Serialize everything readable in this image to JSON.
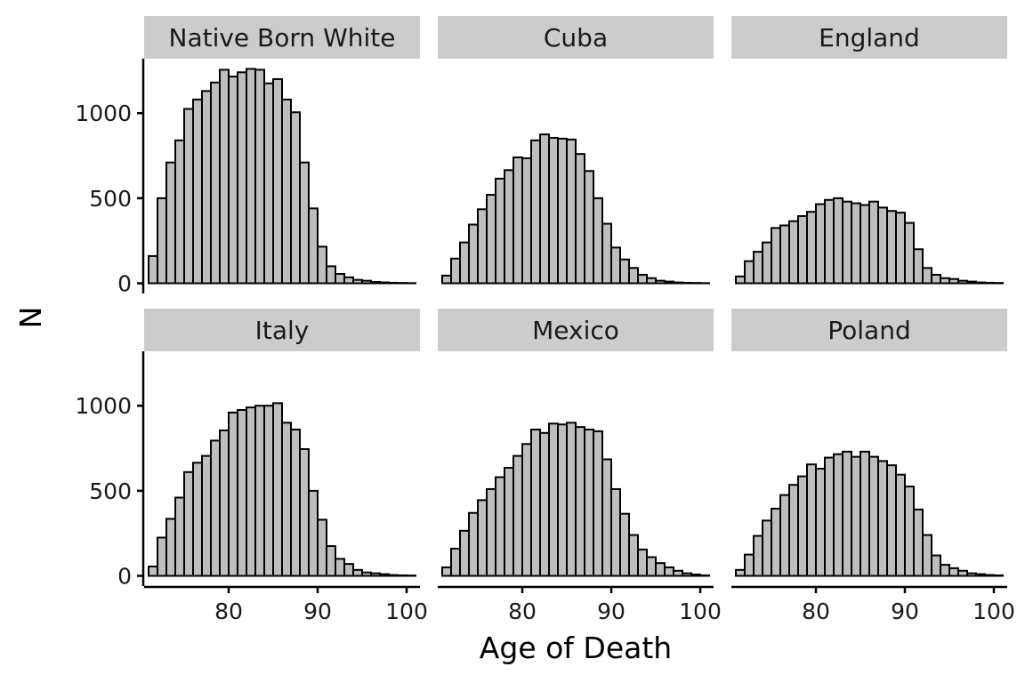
{
  "chart_data": {
    "type": "bar",
    "layout": "facet_wrap 2 rows x 3 columns, shared axes",
    "xlabel": "Age of Death",
    "ylabel": "N",
    "xlim": [
      70.5,
      101.5
    ],
    "ylim": [
      -60,
      1320
    ],
    "x_ticks": [
      80,
      90,
      100
    ],
    "y_ticks": [
      0,
      500,
      1000
    ],
    "bin_start": 71,
    "bin_width": 1,
    "bar_color": "#bebebe",
    "outline_color": "#000000",
    "strip_color": "#cccccc",
    "grid": false,
    "legend": "none",
    "panels": [
      {
        "name": "Native Born White",
        "values": [
          160,
          500,
          710,
          840,
          1025,
          1080,
          1130,
          1180,
          1255,
          1215,
          1240,
          1260,
          1255,
          1175,
          1200,
          1080,
          1005,
          710,
          440,
          215,
          100,
          55,
          35,
          20,
          15,
          8,
          5,
          3,
          2,
          1
        ]
      },
      {
        "name": "Cuba",
        "values": [
          45,
          145,
          240,
          345,
          435,
          520,
          615,
          665,
          740,
          735,
          840,
          875,
          855,
          850,
          845,
          760,
          660,
          500,
          350,
          210,
          140,
          90,
          50,
          30,
          15,
          10,
          5,
          3,
          2,
          1
        ]
      },
      {
        "name": "England",
        "values": [
          40,
          130,
          185,
          240,
          325,
          340,
          365,
          395,
          420,
          465,
          490,
          500,
          480,
          470,
          460,
          480,
          445,
          425,
          415,
          355,
          200,
          90,
          50,
          30,
          25,
          15,
          10,
          5,
          3,
          2
        ]
      },
      {
        "name": "Italy",
        "values": [
          55,
          225,
          335,
          460,
          610,
          665,
          705,
          795,
          855,
          960,
          975,
          990,
          1000,
          1000,
          1015,
          900,
          860,
          745,
          500,
          330,
          175,
          100,
          70,
          35,
          20,
          15,
          10,
          5,
          3,
          2
        ]
      },
      {
        "name": "Mexico",
        "values": [
          50,
          160,
          265,
          370,
          445,
          510,
          580,
          635,
          705,
          775,
          860,
          840,
          895,
          890,
          900,
          875,
          860,
          850,
          685,
          510,
          365,
          240,
          155,
          110,
          75,
          50,
          30,
          15,
          8,
          3
        ]
      },
      {
        "name": "Poland",
        "values": [
          35,
          125,
          235,
          325,
          395,
          475,
          535,
          585,
          655,
          630,
          695,
          715,
          730,
          700,
          730,
          700,
          675,
          650,
          595,
          525,
          390,
          240,
          120,
          65,
          45,
          30,
          15,
          10,
          5,
          3
        ]
      }
    ]
  }
}
